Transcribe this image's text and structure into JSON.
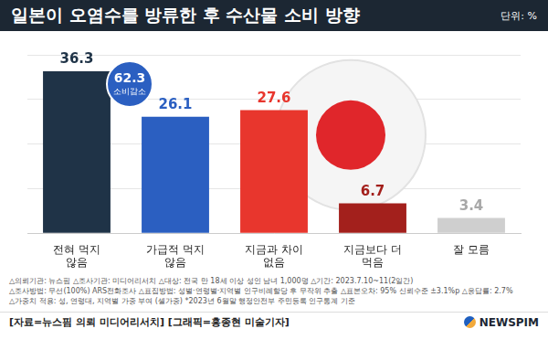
{
  "chart_data": {
    "type": "bar",
    "title": "일본이 오염수를 방류한 후 수산물 소비 방향",
    "unit": "단위: %",
    "categories": [
      "전혀 먹지 않음",
      "가급적 먹지 않음",
      "지금과 차이 없음",
      "지금보다 더 먹음",
      "잘 모름"
    ],
    "values": [
      36.3,
      26.1,
      27.6,
      6.7,
      3.4
    ],
    "colors": [
      "#1f3347",
      "#2b5fc1",
      "#e8362d",
      "#a3201c",
      "#cfcfcf"
    ],
    "ylim": [
      0,
      40
    ],
    "yticks": [
      0,
      10,
      20,
      30,
      40
    ],
    "grid": true,
    "tick_labels": "x",
    "data_labels": true,
    "annotations": [
      {
        "value": 62.3,
        "label": "소비감소"
      }
    ],
    "notes": [
      "△의뢰기관: 뉴스핌 △조사기관: 미디어리서치 △대상: 전국 만 18세 이상 성인 남녀 1,000명 △기간: 2023.7.10~11(2일간)",
      "△조사방법: 무선(100%) ARS전화조사 △표집방법: 성별·연령별·지역별 인구비례할당 후 무작위 추출 △표본오차: 95% 신뢰수준 ±3.1%p △응답률: 2.7%",
      "△가중치 적용: 성, 연령대, 지역별 가중 부여 (셀가중) *2023년 6월말 행정안전부 주민등록 인구통계 기준"
    ],
    "source": "[자료=뉴스핌 의뢰 미디어리서치]",
    "credit": "[그래픽=홍종현 미술기자]",
    "logo": "NEWSPIM"
  }
}
